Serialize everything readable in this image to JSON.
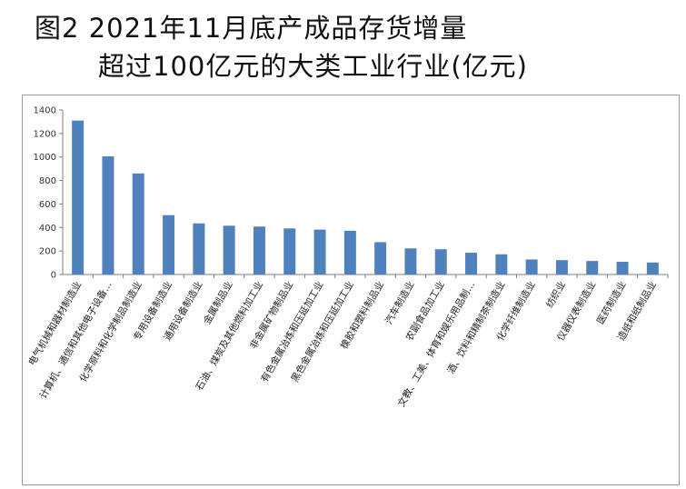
{
  "title": {
    "line1": "图2  2021年11月底产成品存货增量",
    "line2": "超过100亿元的大类工业行业(亿元)"
  },
  "colors": {
    "bar": "#4f81bd",
    "axis": "#7f7f7f"
  },
  "chart_data": {
    "type": "bar",
    "title": "图2  2021年11月底产成品存货增量 超过100亿元的大类工业行业(亿元)",
    "xlabel": "",
    "ylabel": "",
    "ylim": [
      0,
      1400
    ],
    "yticks": [
      "0",
      "200",
      "400",
      "600",
      "800",
      "1000",
      "1200",
      "1400"
    ],
    "grid": false,
    "categories": [
      "电气机械和器材制造业",
      "计算机、通信和其他电子设备…",
      "化学原料和化学制品制造业",
      "专用设备制造业",
      "通用设备制造业",
      "金属制品业",
      "石油、煤炭及其他燃料加工业",
      "非金属矿物制品业",
      "有色金属冶炼和压延加工业",
      "黑色金属冶炼和压延加工业",
      "橡胶和塑料制品业",
      "汽车制造业",
      "农副食品加工业",
      "文教、工美、体育和娱乐用品制…",
      "酒、饮料和精制茶制造业",
      "化学纤维制造业",
      "纺织业",
      "仪器仪表制造业",
      "医药制造业",
      "造纸和纸制品业"
    ],
    "values": [
      1310,
      1005,
      860,
      505,
      435,
      415,
      408,
      392,
      382,
      372,
      275,
      222,
      215,
      185,
      172,
      128,
      122,
      115,
      108,
      102
    ]
  }
}
